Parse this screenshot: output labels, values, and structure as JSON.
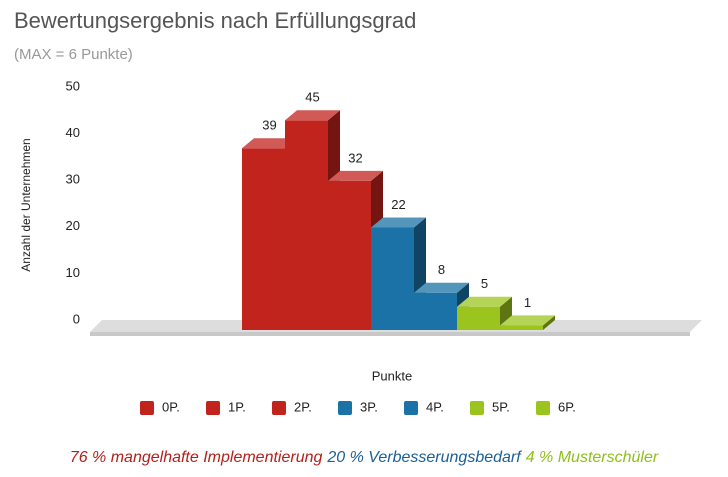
{
  "chart_data": {
    "type": "bar3d",
    "title": "Bewertungsergebnis nach Erfüllungsgrad",
    "subtitle": "(MAX = 6 Punkte)",
    "y_label": "Anzahl der Unternehmen",
    "x_label": "Punkte",
    "categories": [
      "0P.",
      "1P.",
      "2P.",
      "3P.",
      "4P.",
      "5P.",
      "6P."
    ],
    "values": [
      39,
      45,
      32,
      22,
      8,
      5,
      1
    ],
    "colors": [
      "#c1231d",
      "#c1231d",
      "#c1231d",
      "#1b72a6",
      "#1b72a6",
      "#9cc41e",
      "#9cc41e"
    ],
    "ylim": [
      0,
      50
    ],
    "yticks": [
      0,
      10,
      20,
      30,
      40,
      50
    ],
    "grid": false
  },
  "footer": [
    {
      "text": "76 % mangelhafte Implementierung",
      "color": "#b3201b"
    },
    {
      "text": "20 % Verbesserungsbedarf",
      "color": "#1b5f94"
    },
    {
      "text": "4 % Musterschüler",
      "color": "#8fbf1c"
    }
  ]
}
